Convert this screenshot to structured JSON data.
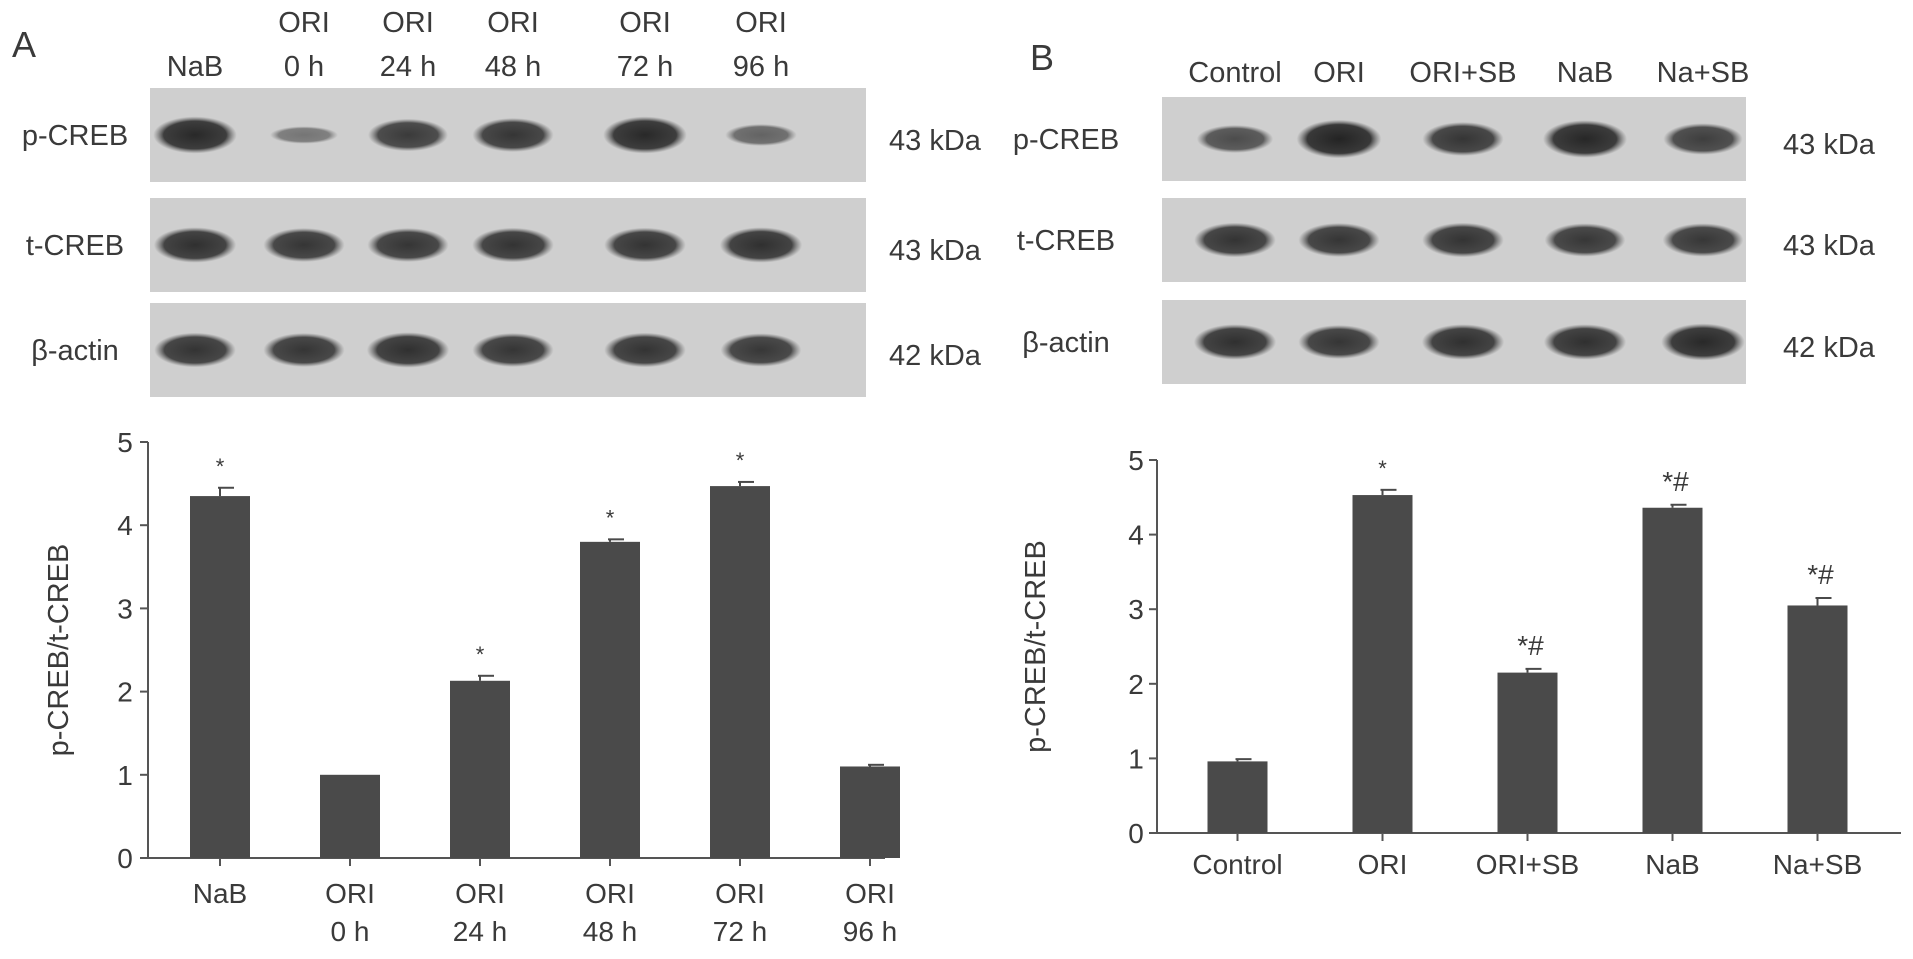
{
  "panels": [
    {
      "letter": "A",
      "blot": {
        "lanes": [
          {
            "line1": "NaB",
            "line2": ""
          },
          {
            "line1": "ORI",
            "line2": "0 h"
          },
          {
            "line1": "ORI",
            "line2": "24 h"
          },
          {
            "line1": "ORI",
            "line2": "48 h"
          },
          {
            "line1": "ORI",
            "line2": "72 h"
          },
          {
            "line1": "ORI",
            "line2": "96 h"
          }
        ],
        "rows": [
          {
            "label": "p-CREB",
            "size": "43 kDa",
            "intensities": [
              0.9,
              0.25,
              0.75,
              0.8,
              0.9,
              0.4
            ]
          },
          {
            "label": "t-CREB",
            "size": "43 kDa",
            "intensities": [
              0.85,
              0.8,
              0.8,
              0.82,
              0.82,
              0.85
            ]
          },
          {
            "label": "β-actin",
            "size": "42 kDa",
            "intensities": [
              0.82,
              0.8,
              0.85,
              0.8,
              0.82,
              0.78
            ]
          }
        ]
      },
      "chart": {
        "type": "bar",
        "ylabel": "p-CREB/t-CREB",
        "ylim": [
          0,
          5
        ],
        "yticks": [
          0,
          1,
          2,
          3,
          4,
          5
        ],
        "categories": [
          {
            "line1": "NaB",
            "line2": ""
          },
          {
            "line1": "ORI",
            "line2": "0 h"
          },
          {
            "line1": "ORI",
            "line2": "24 h"
          },
          {
            "line1": "ORI",
            "line2": "48 h"
          },
          {
            "line1": "ORI",
            "line2": "72 h"
          },
          {
            "line1": "ORI",
            "line2": "96 h"
          }
        ],
        "values": [
          4.35,
          1.0,
          2.13,
          3.8,
          4.47,
          1.1
        ],
        "errors": [
          0.1,
          0.0,
          0.06,
          0.03,
          0.05,
          0.02
        ],
        "annotations": [
          "*",
          "",
          "*",
          "*",
          "*",
          ""
        ]
      }
    },
    {
      "letter": "B",
      "blot": {
        "lanes": [
          {
            "line1": "Control",
            "line2": ""
          },
          {
            "line1": "ORI",
            "line2": ""
          },
          {
            "line1": "ORI+SB",
            "line2": ""
          },
          {
            "line1": "NaB",
            "line2": ""
          },
          {
            "line1": "Na+SB",
            "line2": ""
          }
        ],
        "rows": [
          {
            "label": "p-CREB",
            "size": "43 kDa",
            "intensities": [
              0.6,
              0.95,
              0.8,
              0.92,
              0.72
            ]
          },
          {
            "label": "t-CREB",
            "size": "43 kDa",
            "intensities": [
              0.82,
              0.8,
              0.82,
              0.78,
              0.78
            ]
          },
          {
            "label": "β-actin",
            "size": "42 kDa",
            "intensities": [
              0.85,
              0.8,
              0.85,
              0.85,
              0.9
            ]
          }
        ]
      },
      "chart": {
        "type": "bar",
        "ylabel": "p-CREB/t-CREB",
        "ylim": [
          0,
          5
        ],
        "yticks": [
          0,
          1,
          2,
          3,
          4,
          5
        ],
        "categories": [
          {
            "line1": "Control",
            "line2": ""
          },
          {
            "line1": "ORI",
            "line2": ""
          },
          {
            "line1": "ORI+SB",
            "line2": ""
          },
          {
            "line1": "NaB",
            "line2": ""
          },
          {
            "line1": "Na+SB",
            "line2": ""
          }
        ],
        "values": [
          0.96,
          4.53,
          2.15,
          4.36,
          3.05
        ],
        "errors": [
          0.03,
          0.07,
          0.05,
          0.04,
          0.1
        ],
        "annotations": [
          "",
          "*",
          "*#",
          "*#",
          "*#"
        ]
      }
    }
  ],
  "colors": {
    "bar": "#4a4a4a",
    "axis": "#555555",
    "blot_bg": "#cfcfcf",
    "band": "#2a2a2a"
  }
}
